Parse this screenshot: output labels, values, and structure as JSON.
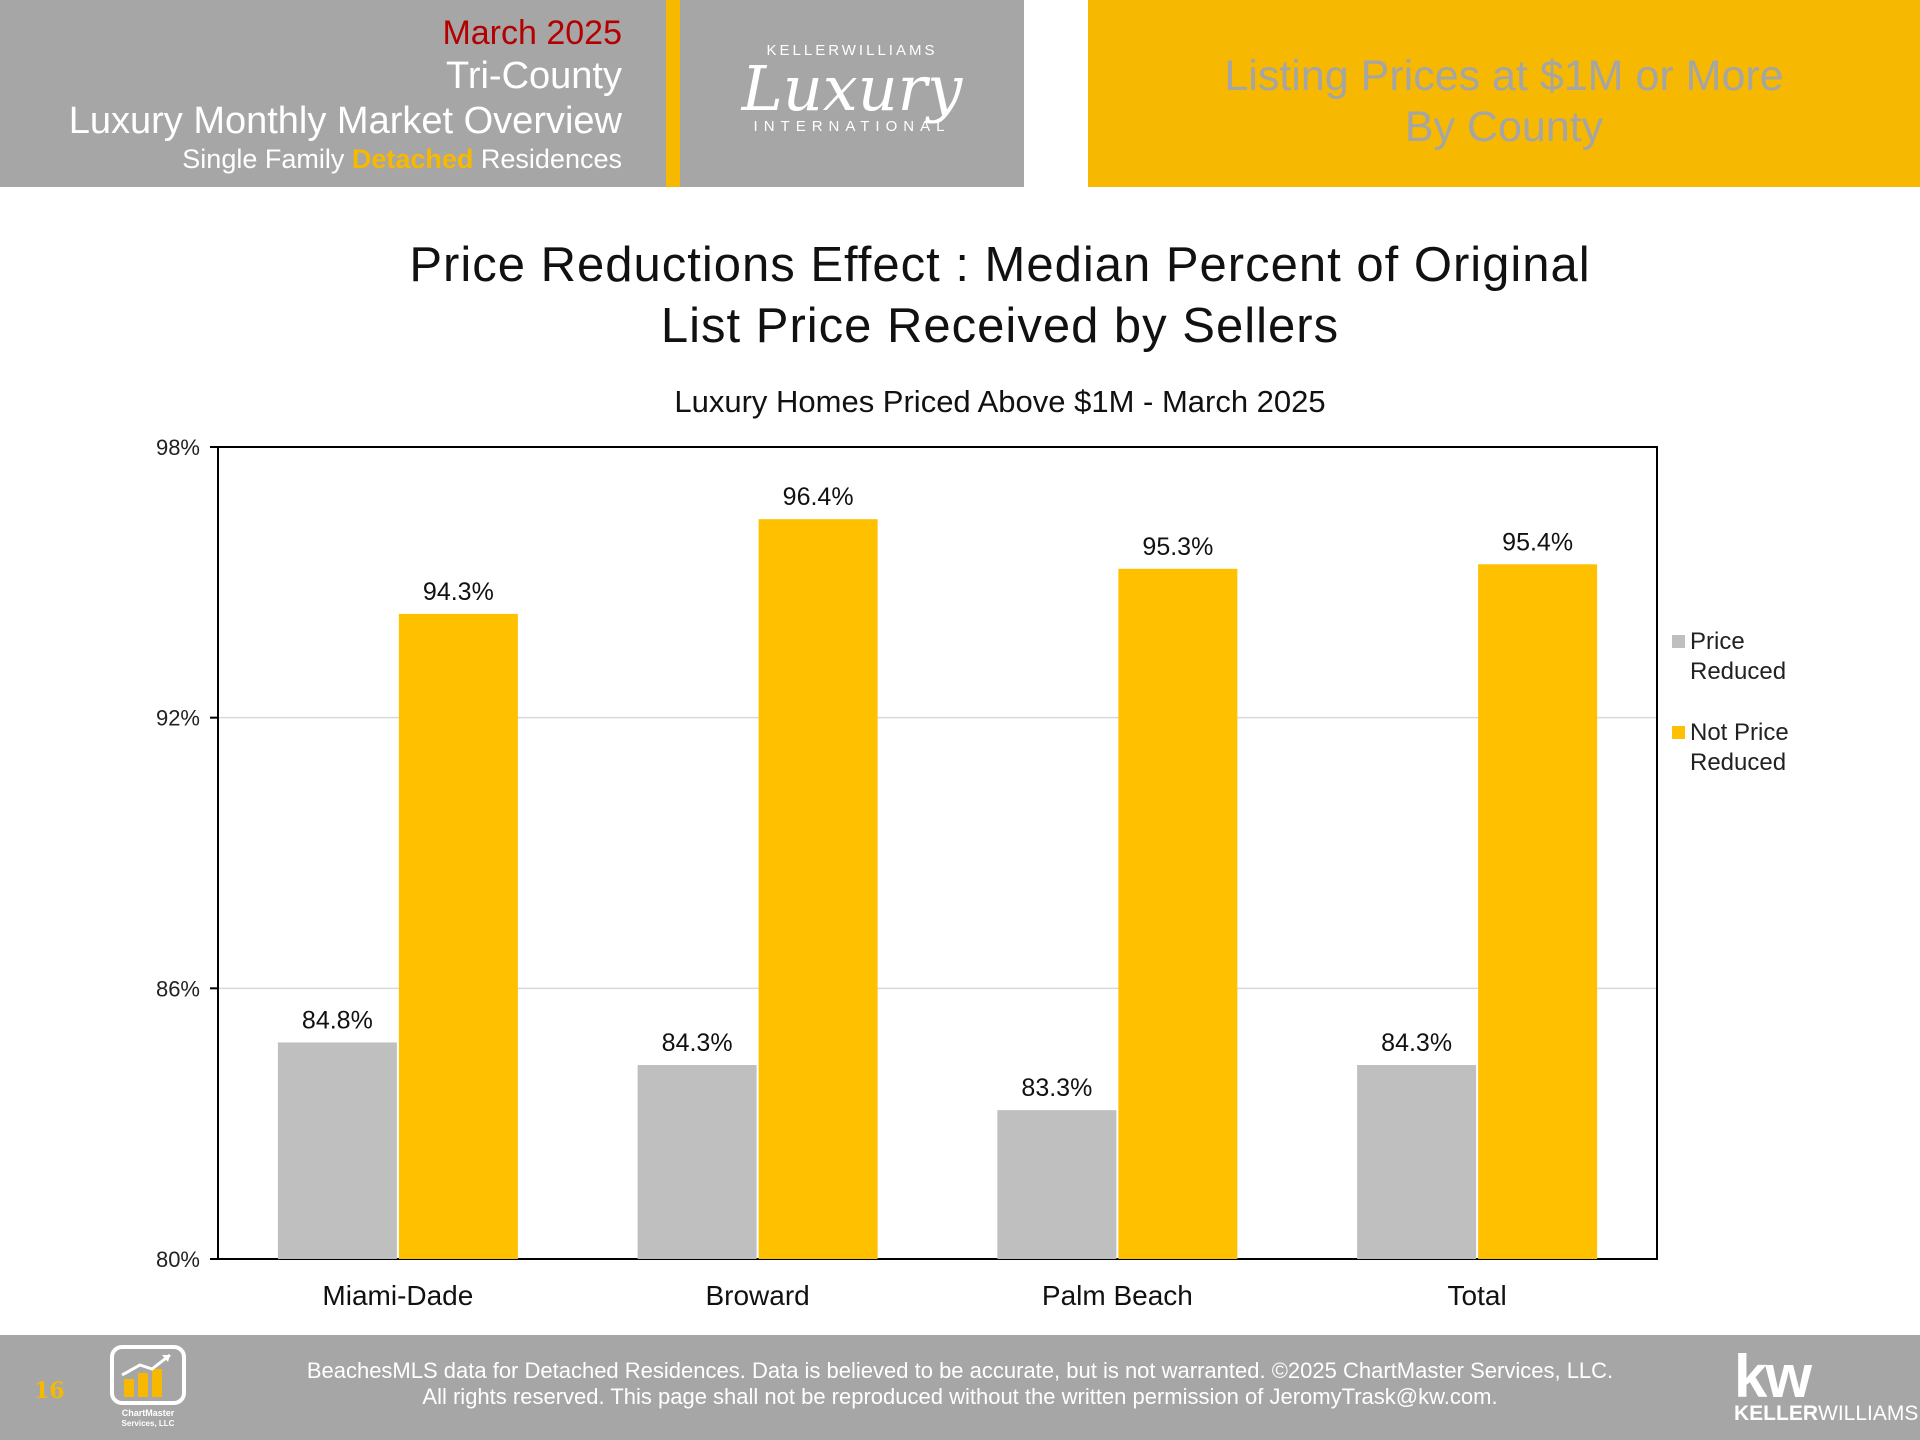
{
  "header": {
    "month": "March 2025",
    "region": "Tri-County",
    "overview": "Luxury Monthly Market Overview",
    "subtitle_pre": "Single Family ",
    "subtitle_highlight": "Detached",
    "subtitle_post": " Residences",
    "logo_top": "KELLERWILLIAMS",
    "logo_script": "Luxury",
    "logo_bottom": "INTERNATIONAL",
    "right_line1": "Listing Prices at $1M or More",
    "right_line2": "By County"
  },
  "colors": {
    "header_gray": "#a6a6a6",
    "accent_gold": "#f7b900",
    "price_reduced": "#bfbfbf",
    "not_price_reduced": "#ffc000",
    "month_red": "#b40000"
  },
  "chart_data": {
    "type": "bar",
    "title_line1": "Price Reductions Effect : Median Percent of Original",
    "title_line2": "List Price Received by Sellers",
    "subtitle": "Luxury Homes Priced Above $1M - March 2025",
    "categories": [
      "Miami-Dade",
      "Broward",
      "Palm Beach",
      "Total"
    ],
    "series": [
      {
        "name": "Price Reduced",
        "values": [
          84.8,
          84.3,
          83.3,
          84.3
        ],
        "color": "#bfbfbf"
      },
      {
        "name": "Not Price Reduced",
        "values": [
          94.3,
          96.4,
          95.3,
          95.4
        ],
        "color": "#ffc000"
      }
    ],
    "ylim": [
      80,
      98
    ],
    "yticks": [
      80,
      86,
      92,
      98
    ],
    "ytick_labels": [
      "80%",
      "86%",
      "92%",
      "98%"
    ],
    "data_labels": [
      [
        "84.8%",
        "84.3%",
        "83.3%",
        "84.3%"
      ],
      [
        "94.3%",
        "96.4%",
        "95.3%",
        "95.4%"
      ]
    ],
    "legend": [
      {
        "line1": "Price",
        "line2": "Reduced"
      },
      {
        "line1": "Not Price",
        "line2": "Reduced"
      }
    ],
    "legend_position": "right",
    "grid": true
  },
  "footer": {
    "page_number": "16",
    "line1": "BeachesMLS data for Detached Residences.  Data is believed to be accurate, but is not warranted.   ©2025  ChartMaster Services, LLC.",
    "line2": "All rights reserved. This page shall not be reproduced without the written permission of JeromyTrask@kw.com.",
    "cm_logo_line1": "ChartMaster",
    "cm_logo_line2": "Services, LLC",
    "kw_mark": "kw",
    "kw_text_bold": "KELLER",
    "kw_text": "WILLIAMS."
  }
}
